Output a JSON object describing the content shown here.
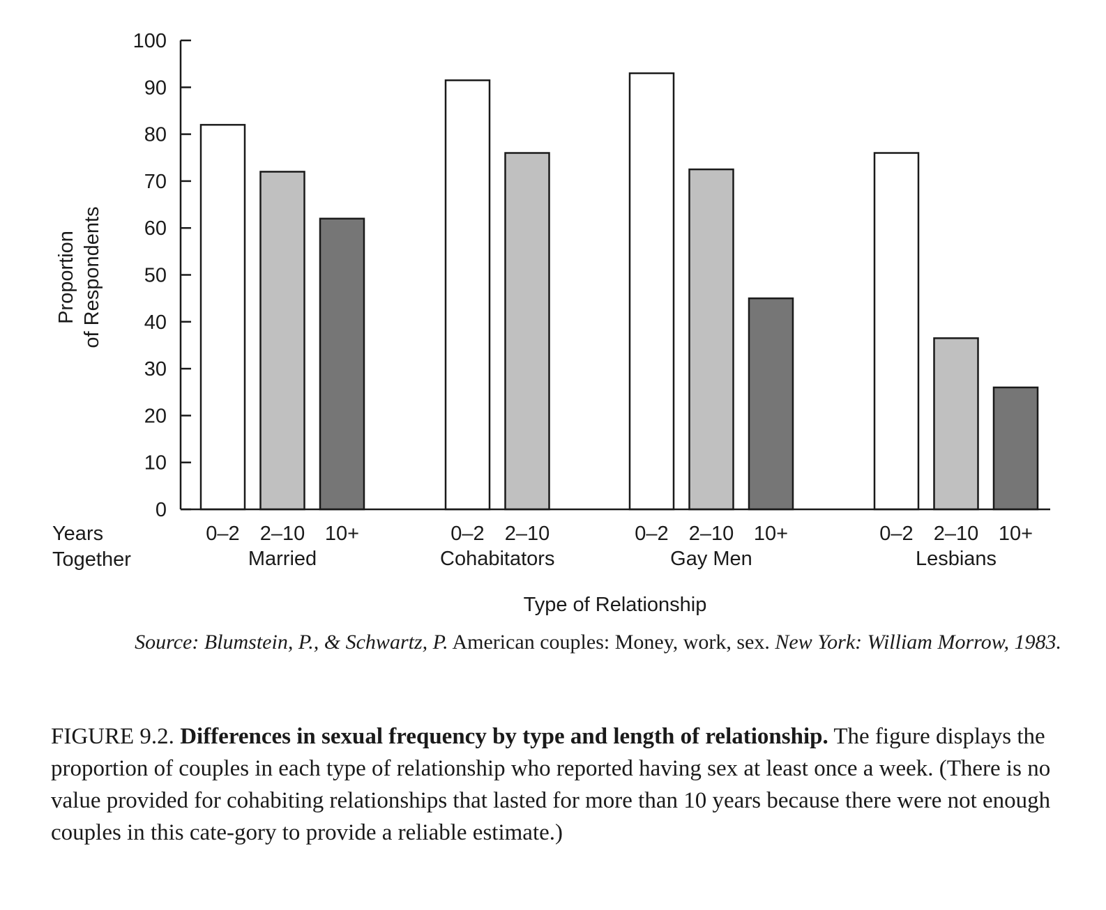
{
  "chart_data": {
    "type": "bar",
    "ylabel_line1": "Proportion",
    "ylabel_line2": "of Respondents",
    "xlabel": "Type of Relationship",
    "x_prefix_line1": "Years",
    "x_prefix_line2": "Together",
    "ylim": [
      0,
      100
    ],
    "yticks": [
      "0",
      "10",
      "20",
      "30",
      "40",
      "50",
      "60",
      "70",
      "80",
      "90",
      "100"
    ],
    "colors": {
      "0-2": "#ffffff",
      "2-10": "#c0c0c0",
      "10+": "#767676"
    },
    "groups": [
      {
        "name": "Married",
        "bars": [
          {
            "label": "0–2",
            "key": "0-2",
            "value": 82
          },
          {
            "label": "2–10",
            "key": "2-10",
            "value": 72
          },
          {
            "label": "10+",
            "key": "10+",
            "value": 62
          }
        ]
      },
      {
        "name": "Cohabitators",
        "bars": [
          {
            "label": "0–2",
            "key": "0-2",
            "value": 91.5
          },
          {
            "label": "2–10",
            "key": "2-10",
            "value": 76
          }
        ]
      },
      {
        "name": "Gay Men",
        "bars": [
          {
            "label": "0–2",
            "key": "0-2",
            "value": 93
          },
          {
            "label": "2–10",
            "key": "2-10",
            "value": 72.5
          },
          {
            "label": "10+",
            "key": "10+",
            "value": 45
          }
        ]
      },
      {
        "name": "Lesbians",
        "bars": [
          {
            "label": "0–2",
            "key": "0-2",
            "value": 76
          },
          {
            "label": "2–10",
            "key": "2-10",
            "value": 36.5
          },
          {
            "label": "10+",
            "key": "10+",
            "value": 26
          }
        ]
      }
    ]
  },
  "source": {
    "authors": "Source: Blumstein, P., & Schwartz, P.",
    "title": "American couples: Money, work, sex.",
    "publisher": "New York: William Morrow, 1983."
  },
  "caption": {
    "label": "FIGURE 9.2.",
    "heading": "Differences in sexual frequency by type and length of relationship.",
    "body": "The figure displays the proportion of couples in each type of relationship who reported having sex at least once a week. (There is no value provided for cohabiting relationships that lasted for more than 10 years because there were not enough couples in this cate-gory to provide a reliable estimate.)"
  }
}
